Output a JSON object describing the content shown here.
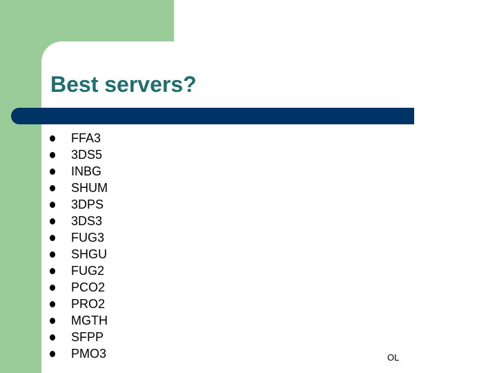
{
  "slide": {
    "title": "Best servers?",
    "items": [
      "FFA3",
      "3DS5",
      "INBG",
      "SHUM",
      "3DPS",
      "3DS3",
      "FUG3",
      "SHGU",
      "FUG2",
      "PCO2",
      "PRO2",
      "MGTH",
      "SFPP",
      "PMO3"
    ],
    "footer": "OL"
  },
  "colors": {
    "accent_green": "#99cc99",
    "title_teal": "#1f6e6e",
    "bar_navy": "#003366"
  }
}
